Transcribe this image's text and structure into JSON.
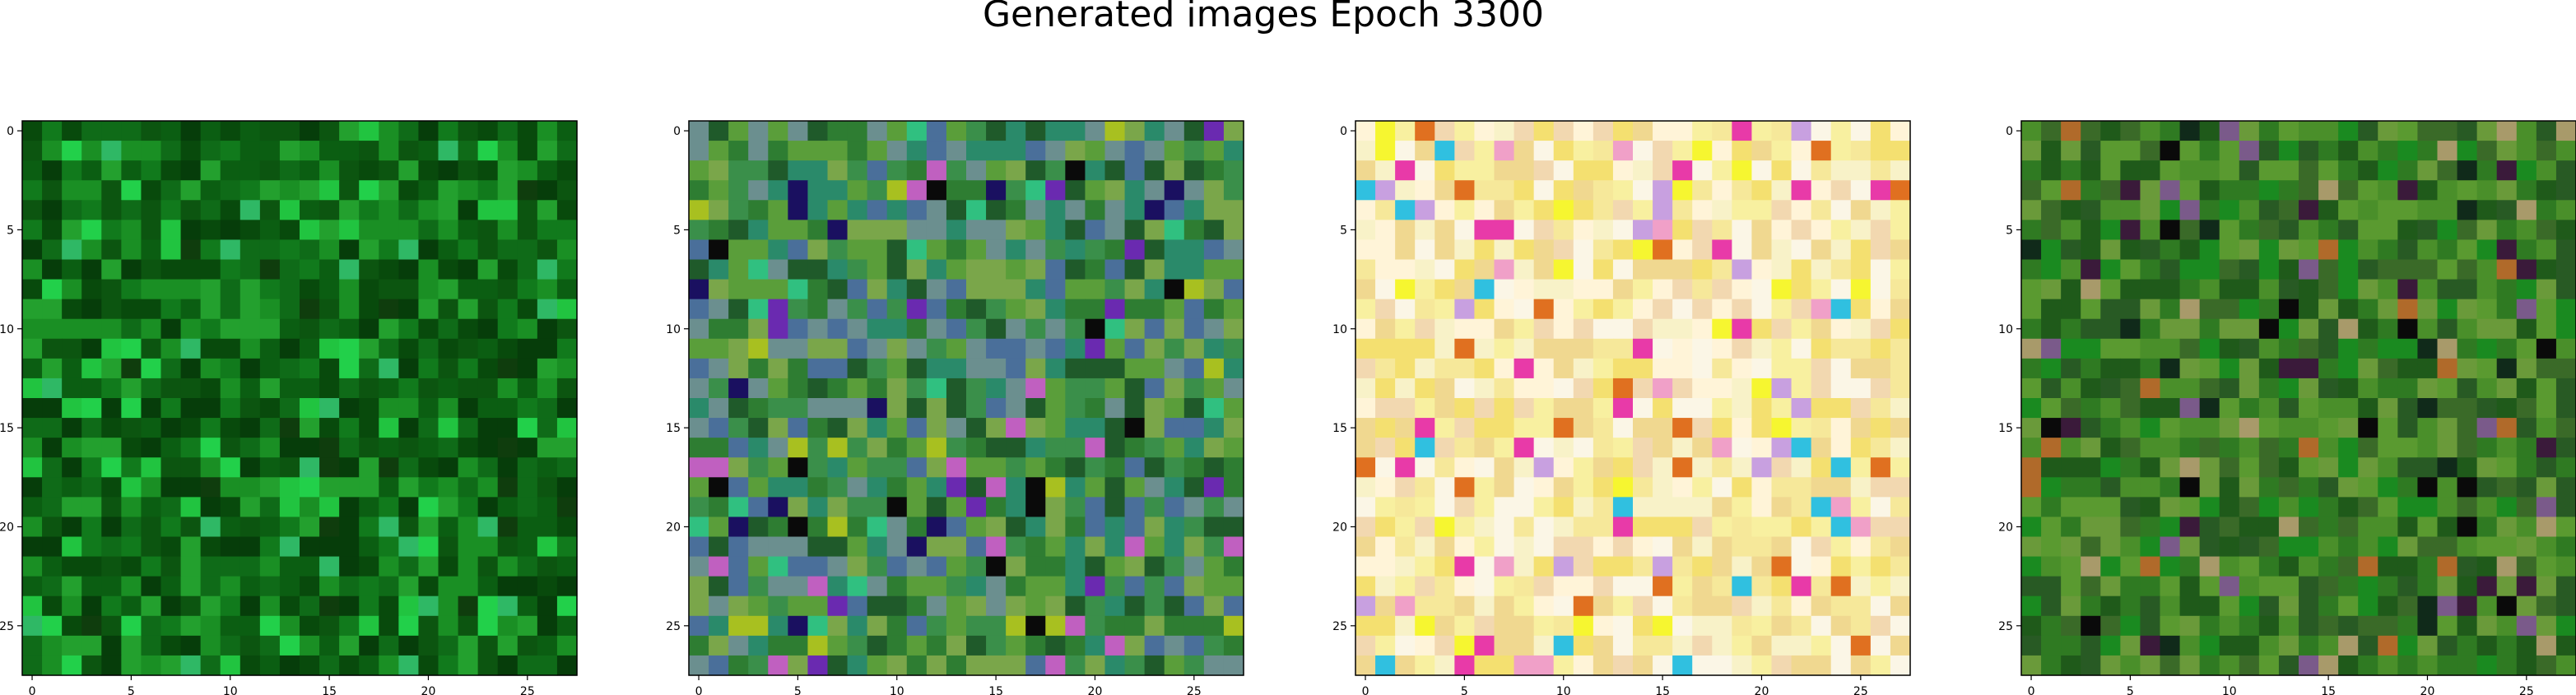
{
  "chart_data": {
    "type": "heatmap",
    "title": "Generated images Epoch 3300",
    "grid": false,
    "pixel_grid": [
      28,
      28
    ],
    "x_ticks": [
      0,
      5,
      10,
      15,
      20,
      25
    ],
    "y_ticks": [
      0,
      5,
      10,
      15,
      20,
      25
    ],
    "xlim": [
      -0.5,
      27.5
    ],
    "ylim": [
      27.5,
      -0.5
    ],
    "panels": [
      {
        "palette": [
          "#0b5e12",
          "#117a1c",
          "#084a0c",
          "#1a8f24",
          "#0f6b18",
          "#063d0a",
          "#23a02e",
          "#0c5510"
        ],
        "highlights": [
          "#21c440",
          "#2fb865",
          "#22d04a",
          "#0f3d0d"
        ]
      },
      {
        "palette": [
          "#2e7d32",
          "#3a8f4a",
          "#1f5a2a",
          "#5a9e3a",
          "#6b8f8f",
          "#4a6f9a",
          "#2a8a6a",
          "#7aa64a"
        ],
        "highlights": [
          "#1a1060",
          "#6a2ab0",
          "#c060c0",
          "#0a0a0a",
          "#a8c020",
          "#30c080"
        ]
      },
      {
        "palette": [
          "#f8f2c8",
          "#f6e89a",
          "#fbf6e6",
          "#f2d8b0",
          "#f8f0a0",
          "#f0d890",
          "#fff4d8",
          "#f4e070"
        ],
        "highlights": [
          "#e83aa8",
          "#f0a0c8",
          "#f6f630",
          "#e07020",
          "#30c0e0",
          "#c8a0e0"
        ]
      },
      {
        "palette": [
          "#2f7a22",
          "#4a8f2a",
          "#1f5a1a",
          "#5a9a30",
          "#3a6a28",
          "#6a9a3a",
          "#285a24",
          "#1a8a20"
        ],
        "highlights": [
          "#0a0a0a",
          "#3a1a3a",
          "#7a5a8a",
          "#a89a6a",
          "#b06a2a",
          "#102a1a"
        ]
      }
    ]
  }
}
